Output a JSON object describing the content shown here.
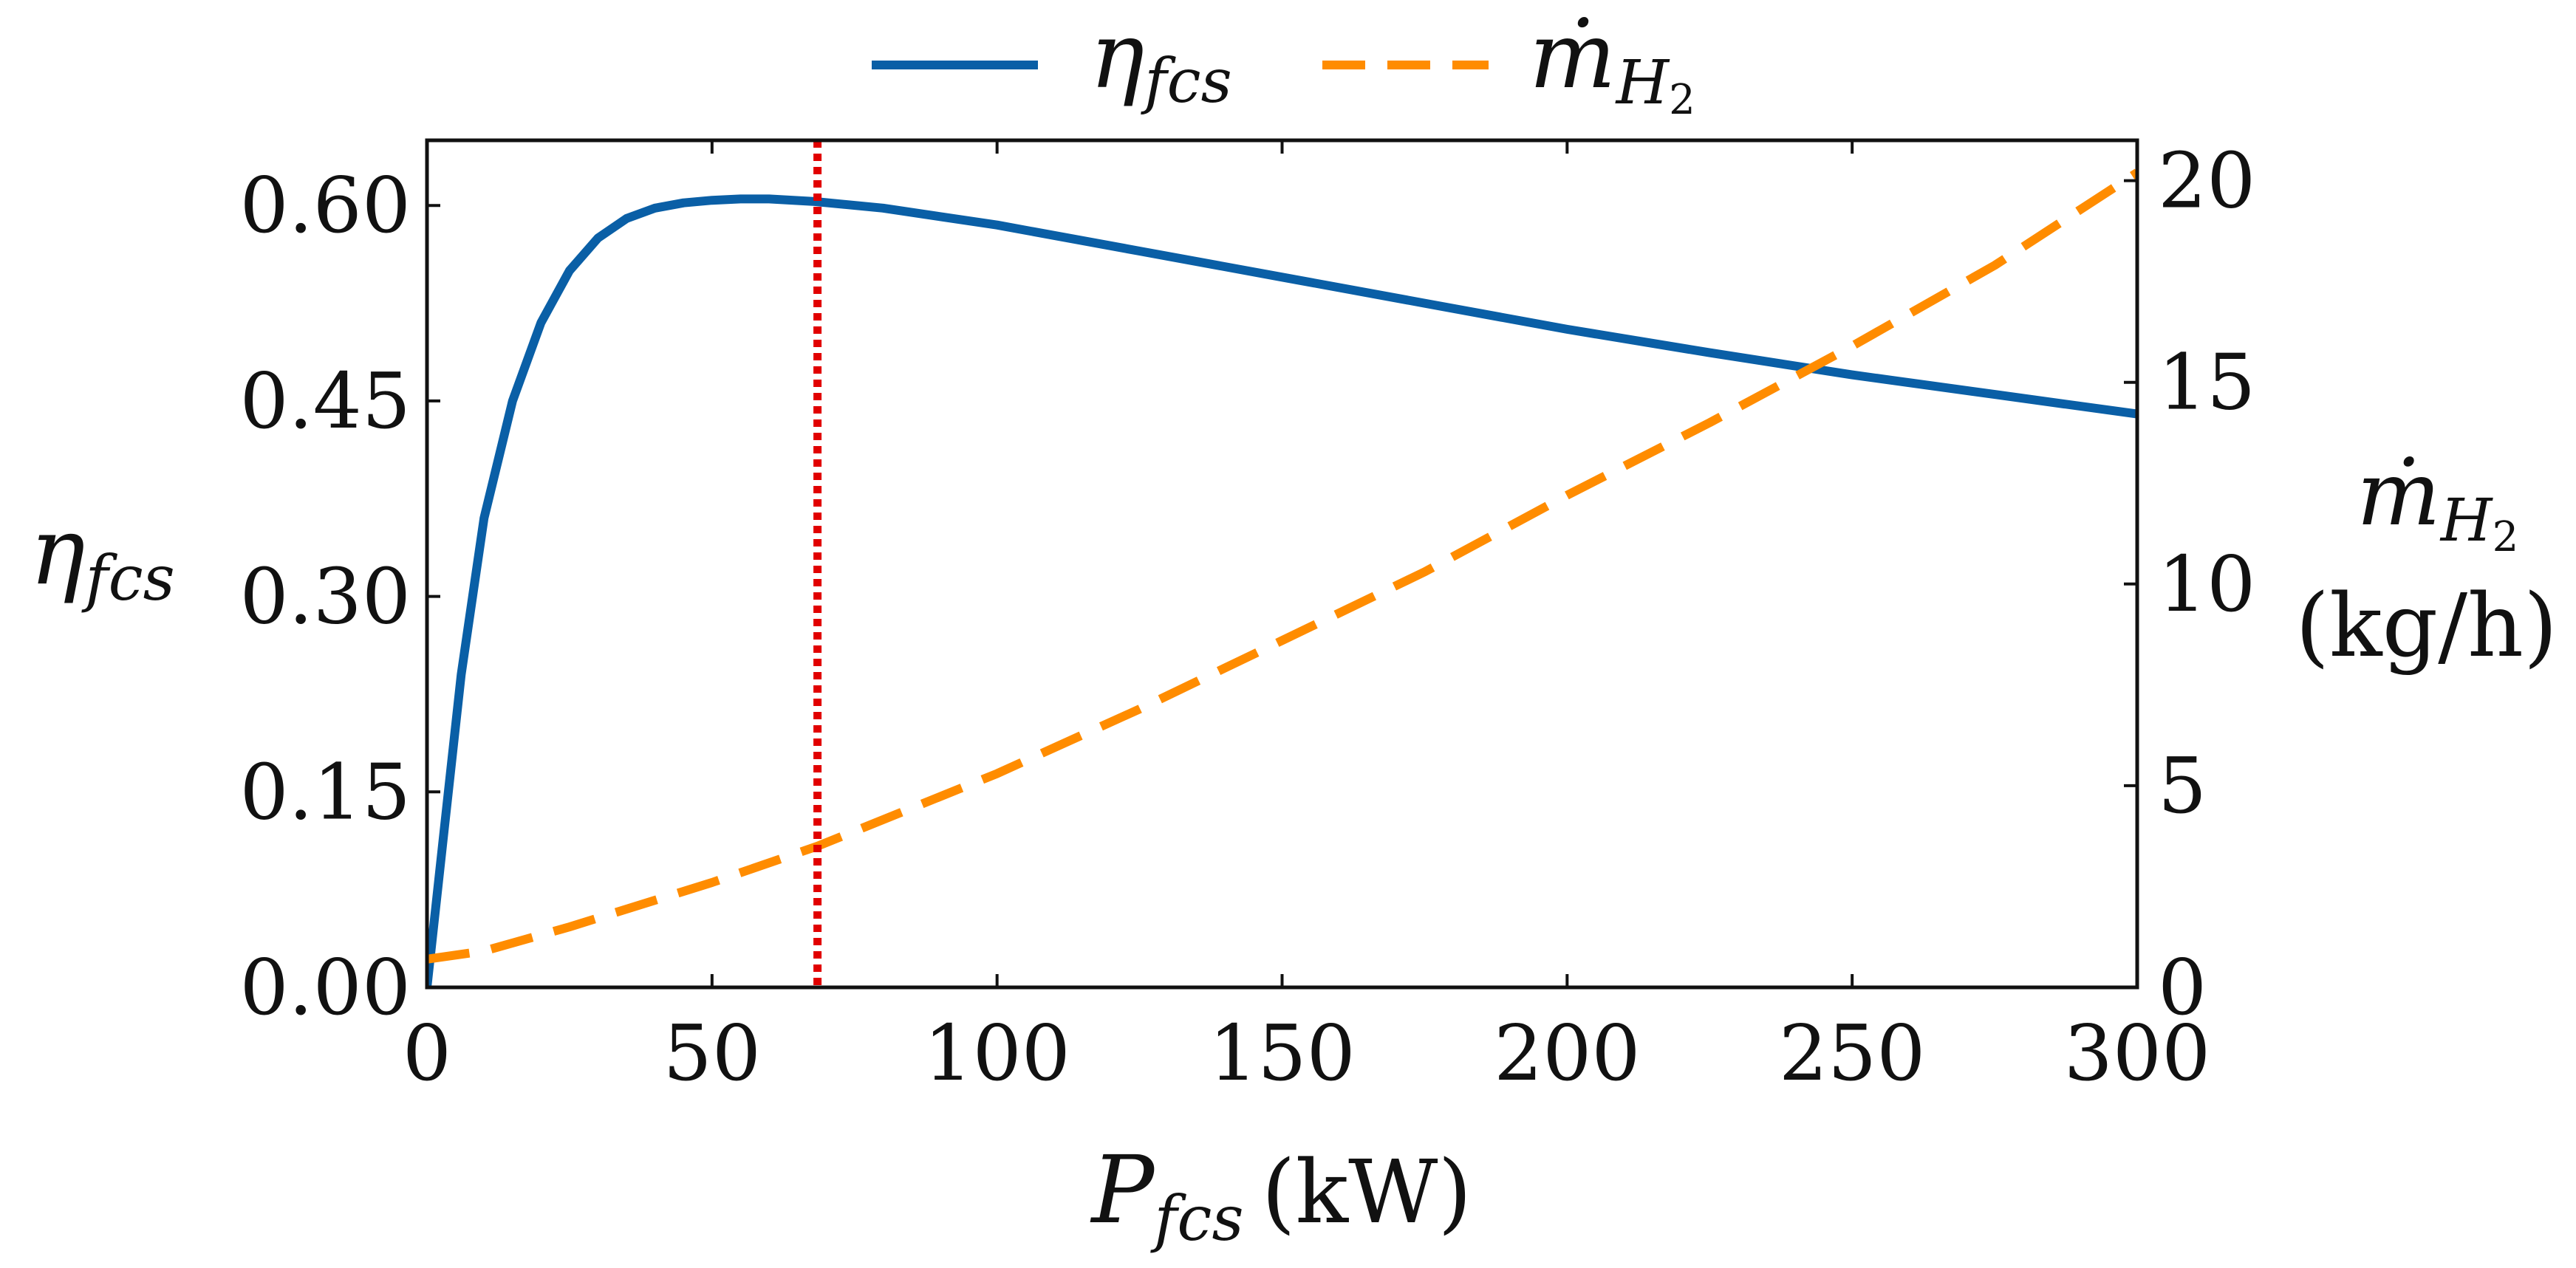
{
  "chart_data": {
    "type": "line",
    "colors": {
      "eta": "#0a5fa6",
      "mdot": "#ff8c00",
      "vline": "#e10000"
    },
    "xlabel": {
      "symbol": "P",
      "subscript": "fcs",
      "unit": "(kW)"
    },
    "ylabel_left": {
      "symbol": "η",
      "subscript": "fcs"
    },
    "ylabel_right": {
      "symbol": "ṁ",
      "subscript": "H",
      "subsub": "2",
      "unit": "(kg/h)"
    },
    "xlim": [
      0,
      300
    ],
    "ylim_left": [
      0,
      0.65
    ],
    "ylim_right": [
      0,
      21
    ],
    "x_ticks": [
      "0",
      "50",
      "100",
      "150",
      "200",
      "250",
      "300"
    ],
    "y_left_ticks": [
      "0.00",
      "0.15",
      "0.30",
      "0.45",
      "0.60"
    ],
    "y_right_ticks": [
      "0",
      "5",
      "10",
      "15",
      "20"
    ],
    "legend": [
      {
        "symbol": "η",
        "subscript": "fcs"
      },
      {
        "symbol": "ṁ",
        "subscript": "H",
        "subsub": "2"
      }
    ],
    "legend_position": "top-center",
    "vertical_line_x": 68.5,
    "series": [
      {
        "axis": "left",
        "style": "solid",
        "x": [
          0,
          3,
          6,
          10,
          15,
          20,
          25,
          30,
          35,
          40,
          45,
          50,
          55,
          60,
          68,
          80,
          100,
          125,
          150,
          175,
          200,
          225,
          250,
          275,
          300
        ],
        "y": [
          0.0,
          0.12,
          0.24,
          0.36,
          0.45,
          0.51,
          0.55,
          0.575,
          0.59,
          0.598,
          0.602,
          0.604,
          0.605,
          0.605,
          0.603,
          0.598,
          0.585,
          0.565,
          0.545,
          0.525,
          0.505,
          0.487,
          0.47,
          0.455,
          0.44
        ]
      },
      {
        "axis": "right",
        "style": "dashed",
        "x": [
          0,
          10,
          25,
          50,
          68.5,
          100,
          125,
          150,
          175,
          200,
          225,
          250,
          275,
          300
        ],
        "y": [
          0.7,
          0.9,
          1.5,
          2.6,
          3.5,
          5.3,
          6.9,
          8.6,
          10.3,
          12.2,
          14.0,
          15.9,
          17.9,
          20.2
        ]
      }
    ]
  }
}
